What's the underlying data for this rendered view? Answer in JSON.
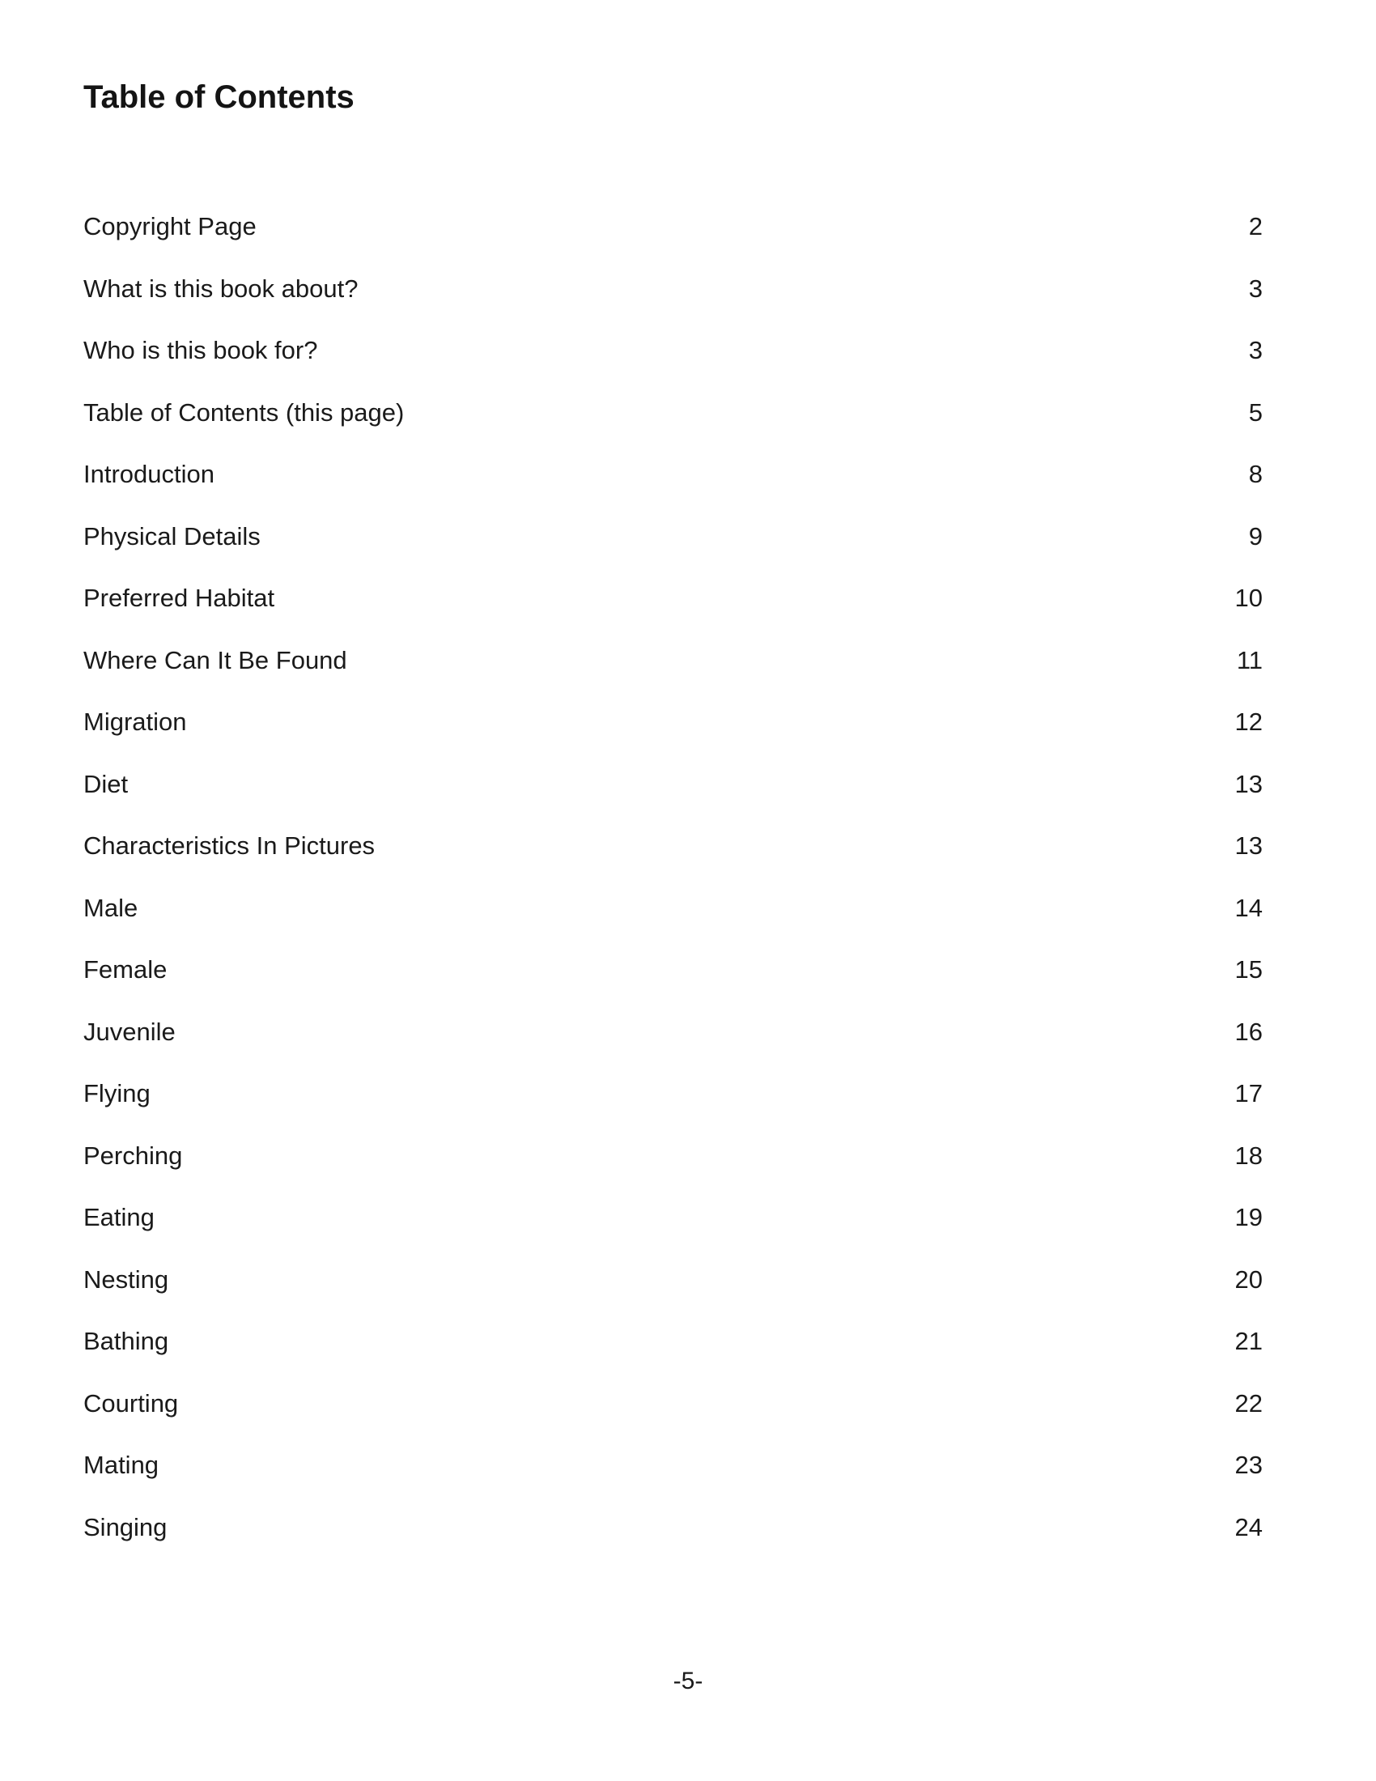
{
  "page": {
    "title": "Table of Contents",
    "footer": "-5-"
  },
  "toc": {
    "entries": [
      {
        "label": "Copyright Page",
        "page": "2"
      },
      {
        "label": "What is this book about?",
        "page": "3"
      },
      {
        "label": "Who is this book for?",
        "page": "3"
      },
      {
        "label": "Table of Contents (this page)",
        "page": "5"
      },
      {
        "label": "Introduction",
        "page": "8"
      },
      {
        "label": "Physical Details",
        "page": "9"
      },
      {
        "label": "Preferred Habitat",
        "page": "10"
      },
      {
        "label": "Where Can It Be Found",
        "page": "11"
      },
      {
        "label": "Migration",
        "page": "12"
      },
      {
        "label": "Diet",
        "page": "13"
      },
      {
        "label": "Characteristics In Pictures",
        "page": "13"
      },
      {
        "label": "Male",
        "page": "14"
      },
      {
        "label": "Female",
        "page": "15"
      },
      {
        "label": "Juvenile",
        "page": "16"
      },
      {
        "label": "Flying",
        "page": "17"
      },
      {
        "label": "Perching",
        "page": "18"
      },
      {
        "label": "Eating",
        "page": "19"
      },
      {
        "label": "Nesting",
        "page": "20"
      },
      {
        "label": "Bathing",
        "page": "21"
      },
      {
        "label": "Courting",
        "page": "22"
      },
      {
        "label": "Mating",
        "page": "23"
      },
      {
        "label": "Singing",
        "page": "24"
      }
    ]
  }
}
